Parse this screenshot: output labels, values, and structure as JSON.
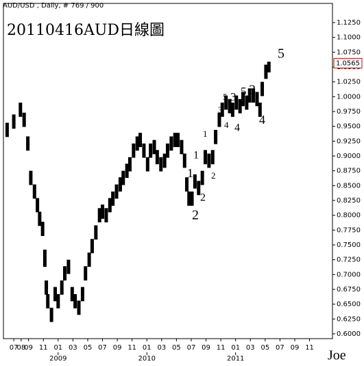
{
  "chart_data": {
    "type": "range-bar",
    "header": "AUD/USD , Daily, # 769 / 900",
    "title": "20110416AUD日線圖",
    "signature": "Joe",
    "color": "#000000",
    "x": [
      -0.9,
      0,
      0.9,
      1.4,
      1.9,
      2.3,
      2.8,
      3.2,
      3.5,
      3.9,
      4.2,
      4.4,
      4.6,
      5.1,
      5.6,
      6.0,
      6.5,
      6.9,
      7.4,
      7.9,
      8.3,
      8.8,
      9.3,
      9.7,
      10.2,
      10.6,
      11.1,
      11.6,
      12.0,
      12.5,
      13.0,
      13.4,
      13.9,
      14.4,
      14.8,
      15.3,
      15.7,
      16.2,
      16.7,
      17.1,
      17.6,
      18.1,
      18.5,
      19.0,
      19.4,
      19.9,
      20.4,
      20.8,
      21.3,
      21.8,
      22.2,
      22.7,
      23.1,
      23.4,
      23.7,
      24.1,
      24.5,
      25.0,
      25.5,
      25.9,
      26.4,
      26.9,
      27.3,
      27.8,
      28.2,
      28.7,
      29.2,
      29.6,
      30.1,
      30.6,
      31.0,
      31.5,
      31.9,
      32.4,
      32.9,
      33.3,
      33.6,
      34.1,
      34.5
    ],
    "high": [
      0.956,
      0.97,
      0.99,
      0.973,
      0.933,
      0.875,
      0.852,
      0.829,
      0.806,
      0.789,
      0.742,
      0.69,
      0.667,
      0.644,
      0.679,
      0.667,
      0.69,
      0.714,
      0.725,
      0.679,
      0.667,
      0.656,
      0.679,
      0.714,
      0.737,
      0.76,
      0.783,
      0.812,
      0.818,
      0.812,
      0.829,
      0.84,
      0.852,
      0.864,
      0.875,
      0.887,
      0.898,
      0.921,
      0.933,
      0.939,
      0.921,
      0.898,
      0.921,
      0.927,
      0.91,
      0.898,
      0.904,
      0.921,
      0.933,
      0.939,
      0.939,
      0.927,
      0.904,
      0.864,
      0.84,
      0.84,
      0.869,
      0.858,
      0.875,
      0.91,
      0.904,
      0.91,
      0.944,
      0.973,
      0.99,
      1.002,
      0.996,
      0.99,
      1.002,
      0.996,
      1.008,
      1.002,
      1.014,
      1.014,
      1.008,
      0.99,
      1.025,
      1.054,
      1.059
    ],
    "low": [
      0.932,
      0.946,
      0.966,
      0.949,
      0.909,
      0.851,
      0.828,
      0.805,
      0.782,
      0.765,
      0.713,
      0.666,
      0.643,
      0.62,
      0.655,
      0.643,
      0.666,
      0.69,
      0.701,
      0.655,
      0.643,
      0.632,
      0.655,
      0.69,
      0.713,
      0.736,
      0.759,
      0.788,
      0.794,
      0.788,
      0.805,
      0.816,
      0.828,
      0.84,
      0.851,
      0.863,
      0.874,
      0.897,
      0.909,
      0.915,
      0.897,
      0.874,
      0.897,
      0.903,
      0.886,
      0.874,
      0.88,
      0.897,
      0.909,
      0.915,
      0.915,
      0.903,
      0.88,
      0.84,
      0.816,
      0.816,
      0.845,
      0.834,
      0.851,
      0.886,
      0.88,
      0.886,
      0.92,
      0.949,
      0.966,
      0.978,
      0.972,
      0.966,
      0.978,
      0.972,
      0.984,
      0.978,
      0.99,
      0.99,
      0.984,
      0.966,
      1.001,
      1.03,
      1.041
    ],
    "last_price": {
      "value": 1.0565,
      "label": "1.0565"
    },
    "xlim": [
      -1.4,
      43.1
    ],
    "ylim": [
      0.5919,
      1.1573
    ],
    "yticks": [
      {
        "value": 0.6,
        "label": "0.6000"
      },
      {
        "value": 0.625,
        "label": "0.6250"
      },
      {
        "value": 0.65,
        "label": "0.6500"
      },
      {
        "value": 0.675,
        "label": "0.6750"
      },
      {
        "value": 0.7,
        "label": "0.7000"
      },
      {
        "value": 0.725,
        "label": "0.7250"
      },
      {
        "value": 0.75,
        "label": "0.7500"
      },
      {
        "value": 0.775,
        "label": "0.7750"
      },
      {
        "value": 0.8,
        "label": "0.8000"
      },
      {
        "value": 0.825,
        "label": "0.8250"
      },
      {
        "value": 0.85,
        "label": "0.8500"
      },
      {
        "value": 0.875,
        "label": "0.8750"
      },
      {
        "value": 0.9,
        "label": "0.9000"
      },
      {
        "value": 0.925,
        "label": "0.9250"
      },
      {
        "value": 0.95,
        "label": "0.9500"
      },
      {
        "value": 0.975,
        "label": "0.9750"
      },
      {
        "value": 1.0,
        "label": "1.0000"
      },
      {
        "value": 1.025,
        "label": "1.0250"
      },
      {
        "value": 1.05,
        "label": "1.0500"
      },
      {
        "value": 1.075,
        "label": "1.0750"
      },
      {
        "value": 1.1,
        "label": "1.1000"
      },
      {
        "value": 1.125,
        "label": "1.1250"
      }
    ],
    "xticks": [
      {
        "value": 0,
        "label": "07"
      },
      {
        "value": 1,
        "label": "08"
      },
      {
        "value": 2,
        "label": "09"
      },
      {
        "value": 4,
        "label": "11"
      },
      {
        "value": 6,
        "label": "01"
      },
      {
        "value": 8,
        "label": "03"
      },
      {
        "value": 10,
        "label": "05"
      },
      {
        "value": 12,
        "label": "07"
      },
      {
        "value": 14,
        "label": "09"
      },
      {
        "value": 16,
        "label": "11"
      },
      {
        "value": 18,
        "label": "01"
      },
      {
        "value": 20,
        "label": "03"
      },
      {
        "value": 22,
        "label": "05"
      },
      {
        "value": 24,
        "label": "07"
      },
      {
        "value": 26,
        "label": "09"
      },
      {
        "value": 28,
        "label": "11"
      },
      {
        "value": 30,
        "label": "01"
      },
      {
        "value": 32,
        "label": "03"
      },
      {
        "value": 34,
        "label": "05"
      },
      {
        "value": 36,
        "label": "07"
      },
      {
        "value": 38,
        "label": "09"
      },
      {
        "value": 40,
        "label": "11"
      }
    ],
    "year_labels": [
      {
        "value": 6,
        "label": "2009"
      },
      {
        "value": 18,
        "label": "2010"
      },
      {
        "value": 30,
        "label": "2011"
      }
    ],
    "annotations": [
      {
        "text": "5",
        "color": "#4a5fc1"
      },
      {
        "text": "5",
        "color": "#2a9a3a"
      },
      {
        "text": "3",
        "color": "#e0303a"
      },
      {
        "text": "5",
        "color": "#e0303a"
      },
      {
        "text": "3",
        "color": "#4a5fc1"
      },
      {
        "text": "3",
        "color": "#2a9a3a"
      },
      {
        "text": "1",
        "color": "#2a9a3a"
      },
      {
        "text": "1",
        "color": "#e0303a"
      },
      {
        "text": "1",
        "color": "#4a5fc1"
      },
      {
        "text": "2",
        "color": "#2a9a3a"
      },
      {
        "text": "2",
        "color": "#e0303a"
      },
      {
        "text": "2",
        "color": "#4a5fc1"
      },
      {
        "text": "4",
        "color": "#2a9a3a"
      },
      {
        "text": "4",
        "color": "#e0303a"
      },
      {
        "text": "4",
        "color": "#4a5fc1"
      }
    ]
  }
}
